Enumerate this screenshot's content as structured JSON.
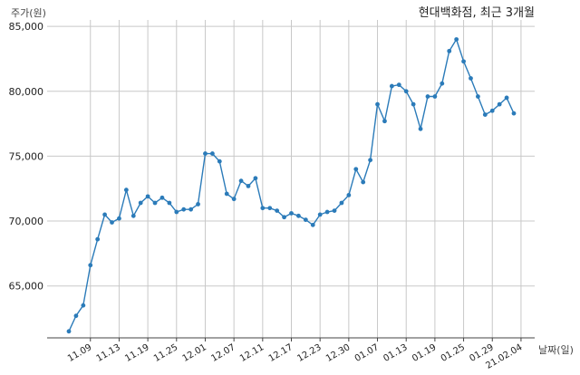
{
  "chart_data": {
    "type": "line",
    "title": "현대백화점, 최근 3개월",
    "ylabel": "주가(원)",
    "xlabel": "날짜(일)",
    "ylim": [
      61000,
      85500
    ],
    "grid": true,
    "yticks": [
      65000,
      70000,
      75000,
      80000,
      85000
    ],
    "ytick_labels": [
      "65,000",
      "70,000",
      "75,000",
      "80,000",
      "85,000"
    ],
    "x_tick_labels": [
      {
        "label": "11.09",
        "index": 3
      },
      {
        "label": "11.13",
        "index": 7
      },
      {
        "label": "11.19",
        "index": 11
      },
      {
        "label": "11.25",
        "index": 15
      },
      {
        "label": "12.01",
        "index": 19
      },
      {
        "label": "12.07",
        "index": 23
      },
      {
        "label": "12.11",
        "index": 27
      },
      {
        "label": "12.17",
        "index": 31
      },
      {
        "label": "12.23",
        "index": 35
      },
      {
        "label": "12.30",
        "index": 39
      },
      {
        "label": "01.07",
        "index": 43
      },
      {
        "label": "01.13",
        "index": 47
      },
      {
        "label": "01.19",
        "index": 51
      },
      {
        "label": "01.25",
        "index": 55
      },
      {
        "label": "01.29",
        "index": 59
      },
      {
        "label": "21.02.04",
        "index": 63
      }
    ],
    "series": [
      {
        "color": "#2b7bb9",
        "values": [
          61500,
          62700,
          63500,
          66600,
          68600,
          70500,
          69900,
          70200,
          72400,
          70400,
          71400,
          71900,
          71400,
          71800,
          71400,
          70700,
          70900,
          70900,
          71300,
          75200,
          75200,
          74600,
          72100,
          71700,
          73100,
          72700,
          73300,
          71000,
          71000,
          70800,
          70300,
          70600,
          70400,
          70100,
          69700,
          70500,
          70700,
          70800,
          71400,
          72000,
          74000,
          73000,
          74700,
          79000,
          77700,
          80400,
          80500,
          80000,
          79000,
          77100,
          79600,
          79600,
          80600,
          83100,
          84000,
          82300,
          81000,
          79600,
          78200,
          78500,
          79000,
          79500,
          78300
        ]
      }
    ]
  }
}
